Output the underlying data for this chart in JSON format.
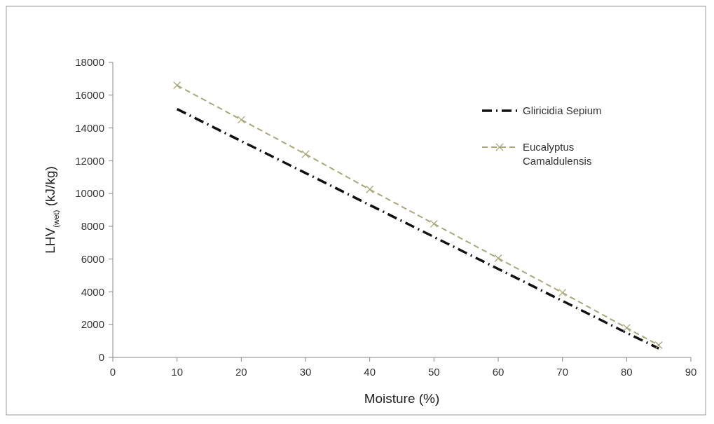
{
  "chart_data": {
    "type": "line",
    "xlabel": "Moisture (%)",
    "ylabel": "LHV$_{(wet)}$ (kJ/kg)",
    "xlim": [
      0,
      90
    ],
    "xticks": [
      0,
      10,
      20,
      30,
      40,
      50,
      60,
      70,
      80,
      90
    ],
    "ylim": [
      0,
      18000
    ],
    "yticks": [
      0,
      2000,
      4000,
      6000,
      8000,
      10000,
      12000,
      14000,
      16000,
      18000
    ],
    "grid": false,
    "legend": "right",
    "series": [
      {
        "name": "Gliricidia Sepium",
        "color": "#111111",
        "line_style": "dashdot",
        "marker": "none",
        "x": [
          10,
          20,
          30,
          40,
          50,
          60,
          70,
          80,
          85
        ],
        "values": [
          15150,
          13200,
          11250,
          9300,
          7350,
          5400,
          3450,
          1500,
          550
        ]
      },
      {
        "name": "Eucalyptus Camaldulensis",
        "color": "#a8a878",
        "marker": "cross",
        "line_style": "dashed",
        "x": [
          10,
          20,
          30,
          40,
          50,
          60,
          70,
          80,
          85
        ],
        "values": [
          16600,
          14500,
          12400,
          10250,
          8150,
          6050,
          3950,
          1800,
          750
        ]
      }
    ]
  }
}
